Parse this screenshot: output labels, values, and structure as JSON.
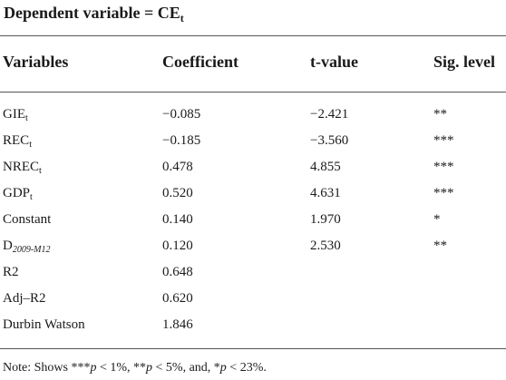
{
  "table": {
    "title": {
      "main": "Dependent variable = CE",
      "sub": "t"
    },
    "headers": [
      "Variables",
      "Coefficient",
      "t-value",
      "Sig. level"
    ],
    "rows": [
      {
        "var": "GIE",
        "sub": "t",
        "coef": "−0.085",
        "t": "−2.421",
        "sig": "**"
      },
      {
        "var": "REC",
        "sub": "t",
        "coef": "−0.185",
        "t": "−3.560",
        "sig": "***"
      },
      {
        "var": "NREC",
        "sub": "t",
        "coef": "0.478",
        "t": "4.855",
        "sig": "***"
      },
      {
        "var": "GDP",
        "sub": "t",
        "coef": "0.520",
        "t": "4.631",
        "sig": "***"
      },
      {
        "var": "Constant",
        "sub": "",
        "coef": "0.140",
        "t": "1.970",
        "sig": "*"
      },
      {
        "var": "D",
        "sub": "2009-M12",
        "coef": "0.120",
        "t": "2.530",
        "sig": "**"
      },
      {
        "var": "R2",
        "sub": "",
        "coef": "0.648",
        "t": "",
        "sig": ""
      },
      {
        "var": "Adj–R2",
        "sub": "",
        "coef": "0.620",
        "t": "",
        "sig": ""
      },
      {
        "var": "Durbin Watson",
        "sub": "",
        "coef": "1.846",
        "t": "",
        "sig": ""
      }
    ],
    "note": {
      "prefix": "Note: Shows ***",
      "p1": "p",
      "t1": " < 1%, **",
      "p2": "p",
      "t2": " < 5%, and, *",
      "p3": "p",
      "t3": " < 23%."
    }
  }
}
